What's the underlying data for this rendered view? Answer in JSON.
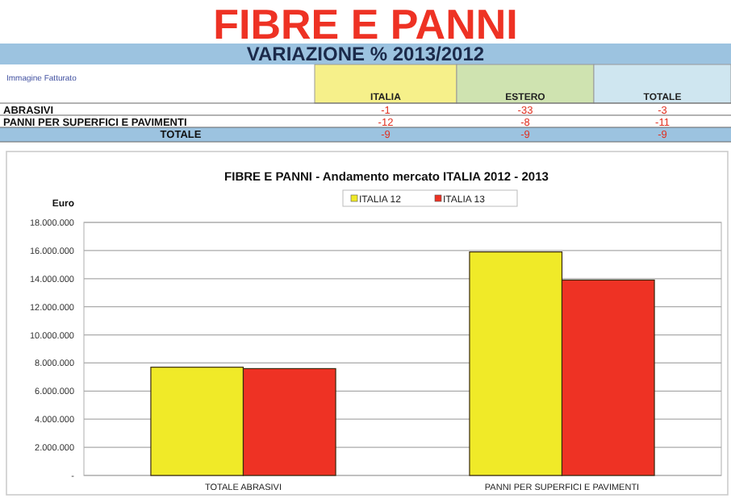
{
  "chart_data": {
    "type": "bar",
    "title": "FIBRE E PANNI",
    "subtitle": "FIBRE E PANNI - Andamento mercato ITALIA 2012 - 2013",
    "ylabel": "Euro",
    "annotations": [
      "VARIAZIONE % 2013/2012",
      "Immagine Fatturato",
      "ITALIA",
      "ESTERO",
      "TOTALE",
      "ABRASIVI",
      "-1",
      "-33",
      "-3",
      "PANNI PER SUPERFICI E PAVIMENTI",
      "-12",
      "-8",
      "-11",
      "TOTALE",
      "-9",
      "-9",
      "-9"
    ],
    "categories": [
      "TOTALE ABRASIVI",
      "PANNI PER SUPERFICI E PAVIMENTI"
    ],
    "series": [
      {
        "name": "ITALIA 12",
        "color": "#f0ea28",
        "values": [
          7700000,
          15900000
        ]
      },
      {
        "name": "ITALIA 13",
        "color": "#ee3224",
        "values": [
          7600000,
          13900000
        ]
      }
    ],
    "ylim": [
      0,
      18000000
    ],
    "yticks": [
      {
        "value": 0,
        "label": "-"
      },
      {
        "value": 2000000,
        "label": "2.000.000"
      },
      {
        "value": 4000000,
        "label": "4.000.000"
      },
      {
        "value": 6000000,
        "label": "6.000.000"
      },
      {
        "value": 8000000,
        "label": "8.000.000"
      },
      {
        "value": 10000000,
        "label": "10.000.000"
      },
      {
        "value": 12000000,
        "label": "12.000.000"
      },
      {
        "value": 14000000,
        "label": "14.000.000"
      },
      {
        "value": 16000000,
        "label": "16.000.000"
      },
      {
        "value": 18000000,
        "label": "18.000.000"
      }
    ],
    "grid": "y",
    "legend": "top"
  }
}
